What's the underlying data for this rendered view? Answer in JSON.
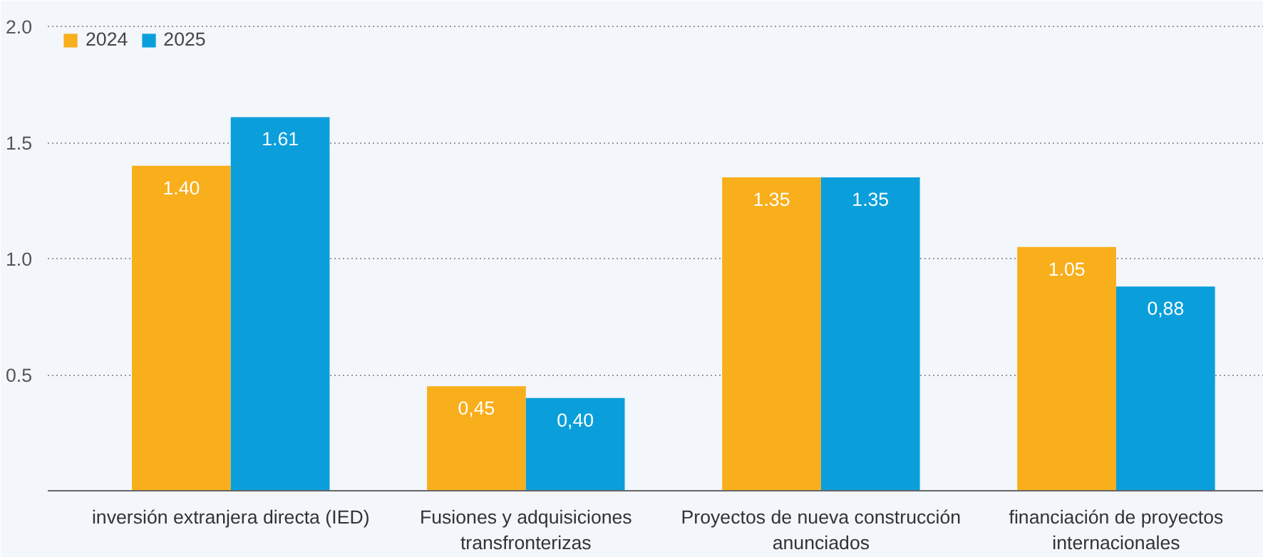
{
  "chart_data": {
    "type": "bar",
    "categories": [
      "inversión extranjera directa (IED)",
      "Fusiones y adquisiciones\ntransfronterizas",
      "Proyectos de nueva construcción\nanunciados",
      "financiación de proyectos\ninternacionales"
    ],
    "series": [
      {
        "name": "2024",
        "color": "#f9ae1b",
        "values": [
          1.4,
          0.45,
          1.35,
          1.05
        ],
        "value_labels": [
          "1.40",
          "0,45",
          "1.35",
          "1.05"
        ]
      },
      {
        "name": "2025",
        "color": "#0a9fdb",
        "values": [
          1.61,
          0.4,
          1.35,
          0.88
        ],
        "value_labels": [
          "1.61",
          "0,40",
          "1.35",
          "0,88"
        ]
      }
    ],
    "ylim": [
      0,
      2.05
    ],
    "yticks": [
      {
        "value": 0.5,
        "label": "0.5"
      },
      {
        "value": 1.0,
        "label": "1.0"
      },
      {
        "value": 1.5,
        "label": "1.5"
      },
      {
        "value": 2.0,
        "label": "2.0"
      }
    ],
    "grid": "y",
    "legend": "top left"
  }
}
